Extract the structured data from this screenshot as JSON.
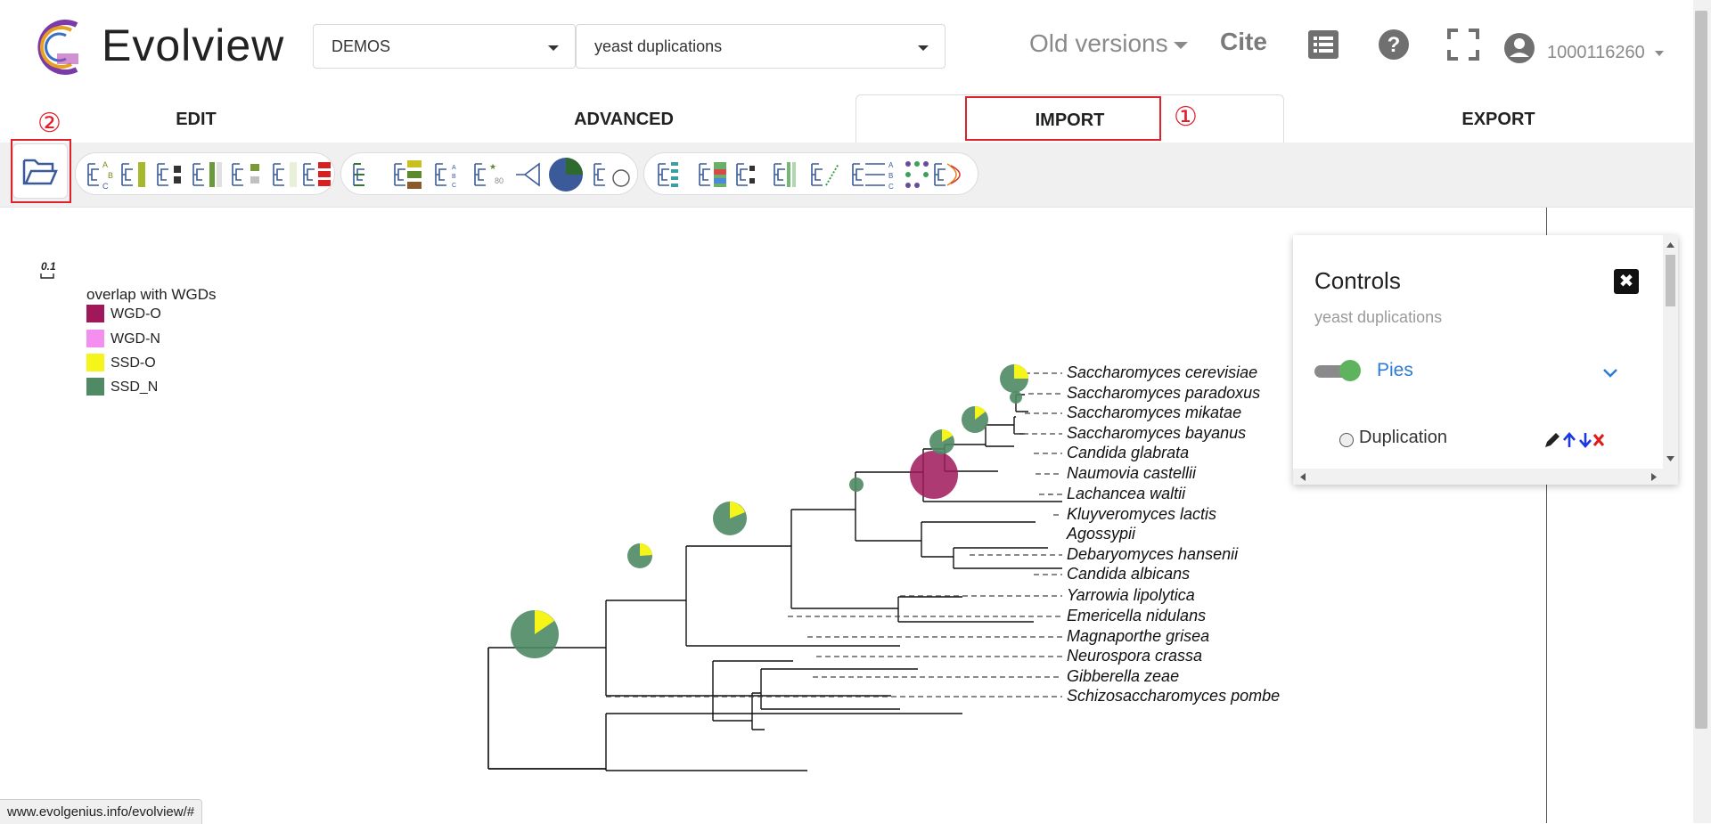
{
  "header": {
    "app_title": "Evolview",
    "project_select": "DEMOS",
    "tree_select": "yeast duplications",
    "old_versions": "Old versions",
    "cite": "Cite",
    "user_id": "1000116260"
  },
  "tabs": [
    {
      "label": "EDIT"
    },
    {
      "label": "ADVANCED"
    },
    {
      "label": "IMPORT"
    },
    {
      "label": "EXPORT"
    }
  ],
  "annotations": {
    "import_marker": "①",
    "folder_marker": "②"
  },
  "tree": {
    "scale_label": "0.1",
    "legend_title": "overlap with WGDs",
    "legend": [
      {
        "label": "WGD-O",
        "color": "#a0185a"
      },
      {
        "label": "WGD-N",
        "color": "#f48ff0"
      },
      {
        "label": "SSD-O",
        "color": "#f5f51a"
      },
      {
        "label": "SSD_N",
        "color": "#4f8a64"
      }
    ],
    "leaves": [
      "Saccharomyces cerevisiae",
      "Saccharomyces paradoxus",
      "Saccharomyces mikatae",
      "Saccharomyces bayanus",
      "Candida glabrata",
      "Naumovia castellii",
      "Lachancea waltii",
      "Kluyveromyces lactis",
      "Agossypii",
      "Debaryomyces hansenii",
      "Candida albicans",
      "Yarrowia lipolytica",
      "Emericella nidulans",
      "Magnaporthe grisea",
      "Neurospora crassa",
      "Gibberella zeae",
      "Schizosaccharomyces pombe"
    ]
  },
  "controls": {
    "title": "Controls",
    "subtitle": "yeast duplications",
    "layer_name": "Pies",
    "item_label": "Duplication",
    "close_symbol": "✖"
  },
  "status_url": "www.evolgenius.info/evolview/#"
}
